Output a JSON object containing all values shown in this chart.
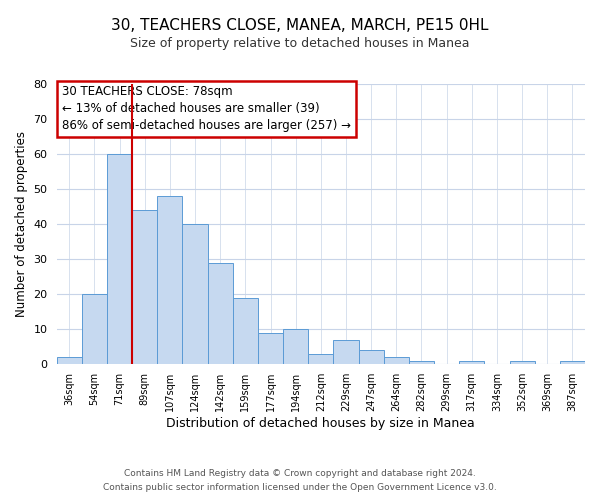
{
  "title": "30, TEACHERS CLOSE, MANEA, MARCH, PE15 0HL",
  "subtitle": "Size of property relative to detached houses in Manea",
  "xlabel": "Distribution of detached houses by size in Manea",
  "ylabel": "Number of detached properties",
  "bin_labels": [
    "36sqm",
    "54sqm",
    "71sqm",
    "89sqm",
    "107sqm",
    "124sqm",
    "142sqm",
    "159sqm",
    "177sqm",
    "194sqm",
    "212sqm",
    "229sqm",
    "247sqm",
    "264sqm",
    "282sqm",
    "299sqm",
    "317sqm",
    "334sqm",
    "352sqm",
    "369sqm",
    "387sqm"
  ],
  "bar_heights": [
    2,
    20,
    60,
    44,
    48,
    40,
    29,
    19,
    9,
    10,
    3,
    7,
    4,
    2,
    1,
    0,
    1,
    0,
    1,
    0,
    1
  ],
  "bar_color": "#c6d9f0",
  "bar_edge_color": "#5b9bd5",
  "vline_x_index": 3,
  "vline_color": "#cc0000",
  "ylim": [
    0,
    80
  ],
  "yticks": [
    0,
    10,
    20,
    30,
    40,
    50,
    60,
    70,
    80
  ],
  "annotation_text_line1": "30 TEACHERS CLOSE: 78sqm",
  "annotation_text_line2": "← 13% of detached houses are smaller (39)",
  "annotation_text_line3": "86% of semi-detached houses are larger (257) →",
  "annotation_box_color": "#ffffff",
  "annotation_box_edge": "#cc0000",
  "footer_line1": "Contains HM Land Registry data © Crown copyright and database right 2024.",
  "footer_line2": "Contains public sector information licensed under the Open Government Licence v3.0.",
  "background_color": "#ffffff",
  "grid_color": "#c8d4e8"
}
